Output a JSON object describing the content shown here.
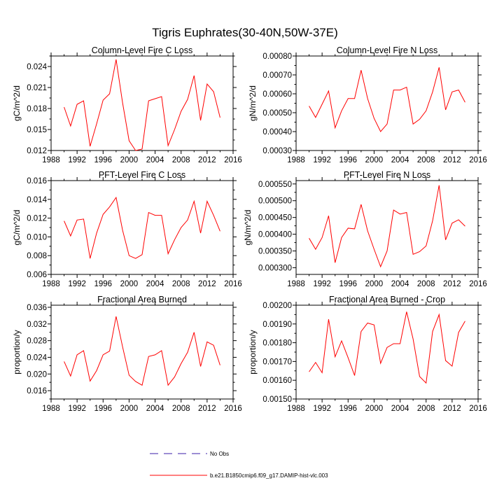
{
  "figure": {
    "title": "Tigris Euphrates(30-40N,50W-37E)"
  },
  "legend": {
    "entries": [
      {
        "label": "No Obs",
        "color": "#3b1ea8",
        "dash": true
      },
      {
        "label": "b.e21.B1850cmip6.f09_g17.DAMIP-hist-vlc.003",
        "color": "#ff0000",
        "dash": false
      }
    ]
  },
  "chart_data": [
    {
      "type": "line",
      "title": "Column-Level Fire C Loss",
      "xlabel": "",
      "ylabel": "gC/m^2/d",
      "xlim": [
        1988,
        2016
      ],
      "ylim": [
        0.012,
        0.0255
      ],
      "xticks": [
        "1988",
        "1992",
        "1996",
        "2000",
        "2004",
        "2008",
        "2012",
        "2016"
      ],
      "yticks": [
        "0.012",
        "0.015",
        "0.018",
        "0.021",
        "0.024"
      ],
      "x": [
        1990,
        1991,
        1992,
        1993,
        1994,
        1995,
        1996,
        1997,
        1998,
        1999,
        2000,
        2001,
        2002,
        2003,
        2004,
        2005,
        2006,
        2007,
        2008,
        2009,
        2010,
        2011,
        2012,
        2013,
        2014
      ],
      "series": [
        {
          "color": "#ff0000",
          "values": [
            0.0182,
            0.0155,
            0.0186,
            0.0191,
            0.0126,
            0.0158,
            0.0192,
            0.0201,
            0.025,
            0.0188,
            0.0134,
            0.012,
            0.0122,
            0.0191,
            0.0194,
            0.0197,
            0.0127,
            0.015,
            0.0176,
            0.0193,
            0.0227,
            0.0163,
            0.0215,
            0.0204,
            0.0167
          ]
        }
      ]
    },
    {
      "type": "line",
      "title": "Column-Level Fire N Loss",
      "xlabel": "",
      "ylabel": "gN/m^2/d",
      "xlim": [
        1988,
        2016
      ],
      "ylim": [
        0.0003,
        0.0008
      ],
      "xticks": [
        "1988",
        "1992",
        "1996",
        "2000",
        "2004",
        "2008",
        "2012",
        "2016"
      ],
      "yticks": [
        "0.00030",
        "0.00040",
        "0.00050",
        "0.00060",
        "0.00070",
        "0.00080"
      ],
      "x": [
        1990,
        1991,
        1992,
        1993,
        1994,
        1995,
        1996,
        1997,
        1998,
        1999,
        2000,
        2001,
        2002,
        2003,
        2004,
        2005,
        2006,
        2007,
        2008,
        2009,
        2010,
        2011,
        2012,
        2013,
        2014
      ],
      "series": [
        {
          "color": "#ff0000",
          "values": [
            0.000535,
            0.000475,
            0.000545,
            0.000615,
            0.00042,
            0.00051,
            0.000575,
            0.000575,
            0.000725,
            0.000575,
            0.00047,
            0.0004,
            0.00044,
            0.00062,
            0.00062,
            0.000635,
            0.00044,
            0.000465,
            0.00051,
            0.00061,
            0.00074,
            0.000515,
            0.00061,
            0.00062,
            0.000555
          ]
        }
      ]
    },
    {
      "type": "line",
      "title": "PFT-Level Fire C Loss",
      "xlabel": "",
      "ylabel": "gC/m^2/d",
      "xlim": [
        1988,
        2016
      ],
      "ylim": [
        0.006,
        0.016
      ],
      "xticks": [
        "1988",
        "1992",
        "1996",
        "2000",
        "2004",
        "2008",
        "2012",
        "2016"
      ],
      "yticks": [
        "0.006",
        "0.008",
        "0.010",
        "0.012",
        "0.014",
        "0.016"
      ],
      "x": [
        1990,
        1991,
        1992,
        1993,
        1994,
        1995,
        1996,
        1997,
        1998,
        1999,
        2000,
        2001,
        2002,
        2003,
        2004,
        2005,
        2006,
        2007,
        2008,
        2009,
        2010,
        2011,
        2012,
        2013,
        2014
      ],
      "series": [
        {
          "color": "#ff0000",
          "values": [
            0.0117,
            0.0101,
            0.0118,
            0.0119,
            0.0077,
            0.0104,
            0.0124,
            0.0132,
            0.0142,
            0.0107,
            0.008,
            0.0077,
            0.0081,
            0.0126,
            0.0123,
            0.0123,
            0.0082,
            0.0097,
            0.011,
            0.0118,
            0.0138,
            0.0104,
            0.0138,
            0.0123,
            0.0106
          ]
        }
      ]
    },
    {
      "type": "line",
      "title": "PFT-Level Fire N Loss",
      "xlabel": "",
      "ylabel": "gN/m^2/d",
      "xlim": [
        1988,
        2016
      ],
      "ylim": [
        0.00028,
        0.00056
      ],
      "xticks": [
        "1988",
        "1992",
        "1996",
        "2000",
        "2004",
        "2008",
        "2012",
        "2016"
      ],
      "yticks": [
        "0.000300",
        "0.000350",
        "0.000400",
        "0.000450",
        "0.000500",
        "0.000550"
      ],
      "x": [
        1990,
        1991,
        1992,
        1993,
        1994,
        1995,
        1996,
        1997,
        1998,
        1999,
        2000,
        2001,
        2002,
        2003,
        2004,
        2005,
        2006,
        2007,
        2008,
        2009,
        2010,
        2011,
        2012,
        2013,
        2014
      ],
      "series": [
        {
          "color": "#ff0000",
          "values": [
            0.000388,
            0.000355,
            0.00039,
            0.000455,
            0.000315,
            0.00039,
            0.000418,
            0.000416,
            0.000489,
            0.00041,
            0.000355,
            0.000303,
            0.00035,
            0.000472,
            0.00046,
            0.000465,
            0.00034,
            0.000348,
            0.000365,
            0.00044,
            0.000546,
            0.000383,
            0.000433,
            0.000443,
            0.000424
          ]
        }
      ]
    },
    {
      "type": "line",
      "title": "Fractional Area Burned",
      "xlabel": "",
      "ylabel": "proportion/y",
      "xlim": [
        1988,
        2016
      ],
      "ylim": [
        0.014,
        0.0365
      ],
      "xticks": [
        "1988",
        "1992",
        "1996",
        "2000",
        "2004",
        "2008",
        "2012",
        "2016"
      ],
      "yticks": [
        "0.016",
        "0.020",
        "0.024",
        "0.028",
        "0.032",
        "0.036"
      ],
      "x": [
        1990,
        1991,
        1992,
        1993,
        1994,
        1995,
        1996,
        1997,
        1998,
        1999,
        2000,
        2001,
        2002,
        2003,
        2004,
        2005,
        2006,
        2007,
        2008,
        2009,
        2010,
        2011,
        2012,
        2013,
        2014
      ],
      "series": [
        {
          "color": "#ff0000",
          "values": [
            0.023,
            0.0195,
            0.0246,
            0.0256,
            0.0183,
            0.0208,
            0.0246,
            0.0255,
            0.0338,
            0.0265,
            0.0197,
            0.0182,
            0.0173,
            0.0242,
            0.0246,
            0.0256,
            0.0173,
            0.0193,
            0.0225,
            0.0252,
            0.03,
            0.0218,
            0.0277,
            0.0269,
            0.0221
          ]
        }
      ]
    },
    {
      "type": "line",
      "title": "Fractional Area Burned - Crop",
      "xlabel": "",
      "ylabel": "proportion/y",
      "xlim": [
        1988,
        2016
      ],
      "ylim": [
        0.0015,
        0.002
      ],
      "xticks": [
        "1988",
        "1992",
        "1996",
        "2000",
        "2004",
        "2008",
        "2012",
        "2016"
      ],
      "yticks": [
        "0.00150",
        "0.00160",
        "0.00170",
        "0.00180",
        "0.00190",
        "0.00200"
      ],
      "x": [
        1990,
        1991,
        1992,
        1993,
        1994,
        1995,
        1996,
        1997,
        1998,
        1999,
        2000,
        2001,
        2002,
        2003,
        2004,
        2005,
        2006,
        2007,
        2008,
        2009,
        2010,
        2011,
        2012,
        2013,
        2014
      ],
      "series": [
        {
          "color": "#ff0000",
          "values": [
            0.001645,
            0.001695,
            0.00164,
            0.001925,
            0.001725,
            0.00181,
            0.00172,
            0.001625,
            0.00186,
            0.001905,
            0.001895,
            0.00169,
            0.001775,
            0.001795,
            0.001795,
            0.001965,
            0.00182,
            0.00162,
            0.001585,
            0.00186,
            0.00195,
            0.001705,
            0.001675,
            0.001855,
            0.001915
          ]
        }
      ]
    }
  ]
}
